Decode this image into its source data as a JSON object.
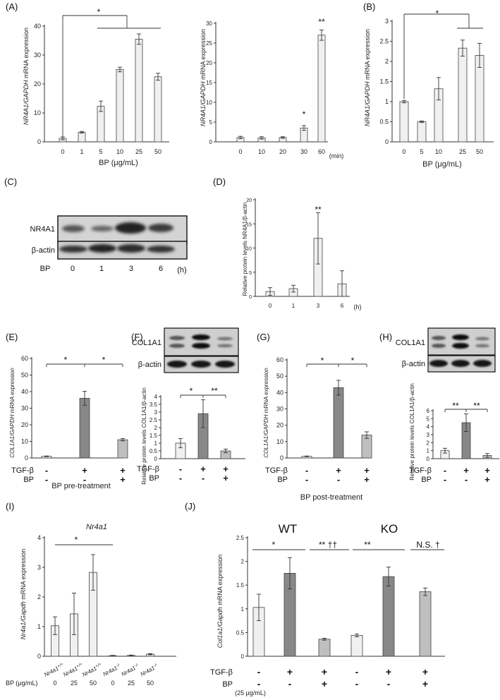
{
  "chart_data": [
    {
      "id": "A1",
      "panel_label": "(A)",
      "type": "bar",
      "categories": [
        "0",
        "1",
        "5",
        "10",
        "25",
        "50"
      ],
      "values": [
        1.2,
        3.3,
        12.3,
        25,
        35.5,
        22.5
      ],
      "errors": [
        0.5,
        0.3,
        1.8,
        0.8,
        1.8,
        1.2
      ],
      "ylim": [
        0,
        40
      ],
      "yticks": [
        0,
        10,
        20,
        30,
        40
      ],
      "ylabel_italic": "NR4A1/GAPDH",
      "ylabel_rest": " mRNA expression",
      "xlabel": "BP (μg/mL)",
      "significance": [
        "*"
      ],
      "fill": "#f0f0f0"
    },
    {
      "id": "A2",
      "type": "bar",
      "categories": [
        "0",
        "10",
        "20",
        "30",
        "60"
      ],
      "values": [
        1.1,
        1.0,
        1.1,
        3.5,
        27
      ],
      "errors": [
        0.3,
        0.3,
        0.2,
        0.6,
        1.3
      ],
      "ylim": [
        0,
        30
      ],
      "yticks": [
        0,
        5,
        10,
        15,
        20,
        25,
        30
      ],
      "ylabel_italic": "NR4A1/GAPDH",
      "ylabel_rest": " mRNA expression",
      "xunit": "(min)",
      "significance": [
        "*",
        "**"
      ],
      "fill": "#f0f0f0"
    },
    {
      "id": "B",
      "panel_label": "(B)",
      "type": "bar",
      "categories": [
        "0",
        "5",
        "10",
        "25",
        "50"
      ],
      "values": [
        1.0,
        0.5,
        1.32,
        2.33,
        2.15
      ],
      "errors": [
        0.03,
        0.02,
        0.28,
        0.2,
        0.3
      ],
      "ylim": [
        0,
        3
      ],
      "yticks": [
        0,
        0.5,
        1,
        1.5,
        2,
        2.5,
        3
      ],
      "ylabel_italic": "NR4A1/GAPDH",
      "ylabel_rest": " mRNA expression",
      "xlabel": "BP (μg/mL)",
      "significance": [
        "*"
      ],
      "fill": "#f0f0f0"
    },
    {
      "id": "D",
      "panel_label": "(D)",
      "type": "bar",
      "categories": [
        "0",
        "1",
        "3",
        "6"
      ],
      "values": [
        1.0,
        1.6,
        12,
        2.6
      ],
      "errors": [
        0.8,
        0.7,
        5.3,
        2.7
      ],
      "ylim": [
        0,
        20
      ],
      "yticks": [
        0,
        5,
        10,
        15,
        20
      ],
      "ylabel": "Relative protein levels NR4A1/β-actin",
      "xunit": "(h)",
      "significance": [
        "**"
      ],
      "fill": "#f0f0f0"
    },
    {
      "id": "E",
      "panel_label": "(E)",
      "type": "bar",
      "categories": [
        "1",
        "2",
        "3"
      ],
      "values": [
        1.0,
        36,
        11
      ],
      "errors": [
        0.2,
        4.2,
        0.7
      ],
      "ylim": [
        0,
        60
      ],
      "yticks": [
        0,
        10,
        20,
        30,
        40,
        50,
        60
      ],
      "ylabel_italic": "COL1A1/GAPDH",
      "ylabel_rest": " mRNA expression",
      "tgf": [
        "-",
        "+",
        "+"
      ],
      "bp": [
        "-",
        "-",
        "+"
      ],
      "xlabel": "BP pre-treatment",
      "significance": [
        "*",
        "*"
      ],
      "fills": [
        "#f0f0f0",
        "#888888",
        "#bfbfbf"
      ]
    },
    {
      "id": "F",
      "panel_label": "(F)",
      "type": "bar",
      "categories": [
        "1",
        "2",
        "3"
      ],
      "values": [
        1.0,
        2.9,
        0.5
      ],
      "errors": [
        0.3,
        0.9,
        0.12
      ],
      "ylim": [
        0,
        4
      ],
      "yticks": [
        0,
        0.5,
        1,
        1.5,
        2,
        2.5,
        3,
        3.5,
        4
      ],
      "ylabel": "Relative protein levels COL1A1/β-actin",
      "tgf": [
        "-",
        "+",
        "+"
      ],
      "bp": [
        "-",
        "-",
        "+"
      ],
      "significance": [
        "*",
        "**"
      ],
      "fills": [
        "#f0f0f0",
        "#888888",
        "#bfbfbf"
      ]
    },
    {
      "id": "G",
      "panel_label": "(G)",
      "type": "bar",
      "categories": [
        "1",
        "2",
        "3"
      ],
      "values": [
        1.0,
        43,
        14
      ],
      "errors": [
        0.2,
        4.5,
        2.0
      ],
      "ylim": [
        0,
        60
      ],
      "yticks": [
        0,
        10,
        20,
        30,
        40,
        50,
        60
      ],
      "ylabel_italic": "COL1A1/GAPDH",
      "ylabel_rest": " mRNA expression",
      "tgf": [
        "-",
        "+",
        "+"
      ],
      "bp": [
        "-",
        "-",
        "+"
      ],
      "xlabel": "BP post-treatment",
      "significance": [
        "*",
        "*"
      ],
      "fills": [
        "#f0f0f0",
        "#888888",
        "#bfbfbf"
      ]
    },
    {
      "id": "H",
      "panel_label": "(H)",
      "type": "bar",
      "categories": [
        "1",
        "2",
        "3"
      ],
      "values": [
        1.0,
        4.5,
        0.4
      ],
      "errors": [
        0.3,
        1.1,
        0.25
      ],
      "ylim": [
        0,
        6
      ],
      "yticks": [
        0,
        1,
        2,
        3,
        4,
        5,
        6
      ],
      "ylabel": "Relative protein levels COL1A1/β-actin",
      "tgf": [
        "-",
        "+",
        "+"
      ],
      "bp": [
        "-",
        "-",
        "+"
      ],
      "significance": [
        "**",
        "**"
      ],
      "fills": [
        "#f0f0f0",
        "#888888",
        "#bfbfbf"
      ]
    },
    {
      "id": "I",
      "panel_label": "(I)",
      "type": "bar",
      "title": "Nr4a1",
      "categories": [
        "1",
        "2",
        "3",
        "4",
        "5",
        "6"
      ],
      "values": [
        1.03,
        1.43,
        2.83,
        0.02,
        0.03,
        0.07
      ],
      "errors": [
        0.3,
        0.7,
        0.6,
        0.01,
        0.01,
        0.02
      ],
      "ylim": [
        0,
        4
      ],
      "yticks": [
        0,
        1,
        2,
        3,
        4
      ],
      "ylabel_italic": "Nr4a1/Gapdh",
      "ylabel_rest": " mRNA expression",
      "genotypes": [
        "Nr4a1+/+",
        "Nr4a1+/+",
        "Nr4a1+/+",
        "Nr4a1-/-",
        "Nr4a1-/-",
        "Nr4a1-/-"
      ],
      "genotype_base": "Nr4a1",
      "genotype_sups": [
        "+/+",
        "+/+",
        "+/+",
        "-/-",
        "-/-",
        "-/-"
      ],
      "bp_label": "BP (μg/mL)",
      "bp_values": [
        "0",
        "25",
        "50",
        "0",
        "25",
        "50"
      ],
      "significance": [
        "*"
      ],
      "fill": "#f0f0f0"
    },
    {
      "id": "J",
      "panel_label": "(J)",
      "type": "bar",
      "groups": [
        "WT",
        "KO"
      ],
      "categories": [
        "1",
        "2",
        "3",
        "4",
        "5",
        "6"
      ],
      "values": [
        1.03,
        1.75,
        0.36,
        0.44,
        1.68,
        1.36
      ],
      "errors": [
        0.28,
        0.33,
        0.02,
        0.03,
        0.2,
        0.08
      ],
      "ylim": [
        0,
        2.5
      ],
      "yticks": [
        0,
        0.5,
        1,
        1.5,
        2,
        2.5
      ],
      "ylabel_italic": "Col1a1/Gapdh",
      "ylabel_rest": " mRNA expression",
      "tgf": [
        "-",
        "+",
        "+",
        "-",
        "+",
        "+"
      ],
      "bp": [
        "-",
        "-",
        "+",
        "-",
        "-",
        "+"
      ],
      "bp_conc": "(25 μg/mL)",
      "significance": [
        "*",
        "** ††",
        "**",
        "N.S. †"
      ],
      "fills": [
        "#f0f0f0",
        "#888888",
        "#bfbfbf",
        "#f0f0f0",
        "#888888",
        "#bfbfbf"
      ]
    }
  ],
  "blots": {
    "C": {
      "panel_label": "(C)",
      "rows": [
        "NR4A1",
        "β-actin"
      ],
      "lanes_label": "BP",
      "lanes": [
        "0",
        "1",
        "3",
        "6"
      ],
      "unit": "(h)"
    },
    "F": {
      "rows": [
        "COL1A1",
        "β-actin"
      ]
    },
    "H": {
      "rows": [
        "COL1A1",
        "β-actin"
      ]
    }
  },
  "labels": {
    "tgf": "TGF-β",
    "bp": "BP"
  }
}
